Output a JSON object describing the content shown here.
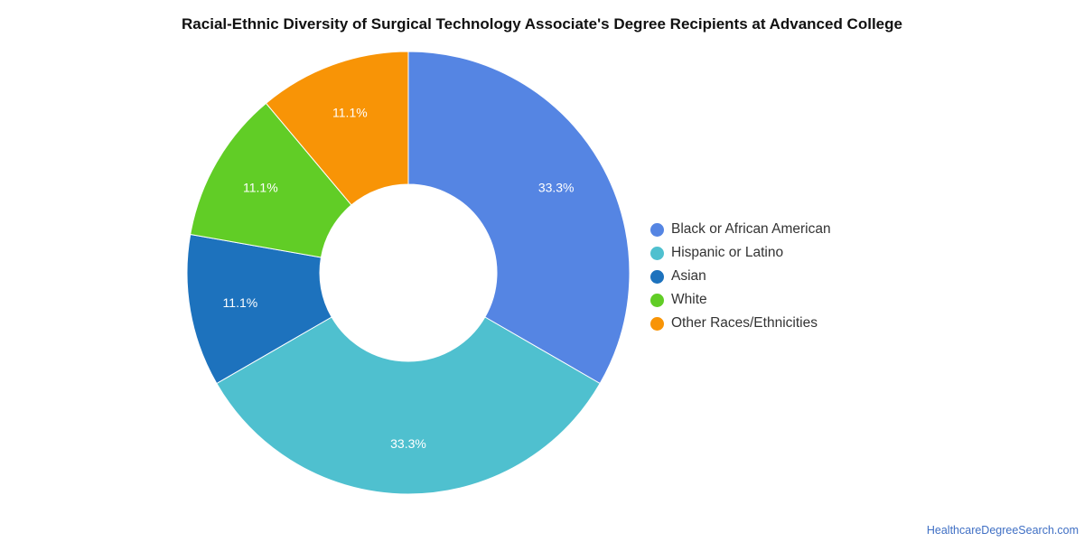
{
  "chart_data": {
    "type": "pie",
    "title": "Racial-Ethnic Diversity of Surgical Technology Associate's Degree Recipients at Advanced College",
    "donut": true,
    "legend_position": "right",
    "slices": [
      {
        "label": "Black or African American",
        "value": 33.3,
        "display": "33.3%",
        "color": "#5585e3"
      },
      {
        "label": "Hispanic or Latino",
        "value": 33.3,
        "display": "33.3%",
        "color": "#4fc0cf"
      },
      {
        "label": "Asian",
        "value": 11.1,
        "display": "11.1%",
        "color": "#1d72bd"
      },
      {
        "label": "White",
        "value": 11.1,
        "display": "11.1%",
        "color": "#61cd26"
      },
      {
        "label": "Other Races/Ethnicities",
        "value": 11.1,
        "display": "11.1%",
        "color": "#f89406"
      }
    ]
  },
  "footer": {
    "source": "HealthcareDegreeSearch.com"
  }
}
